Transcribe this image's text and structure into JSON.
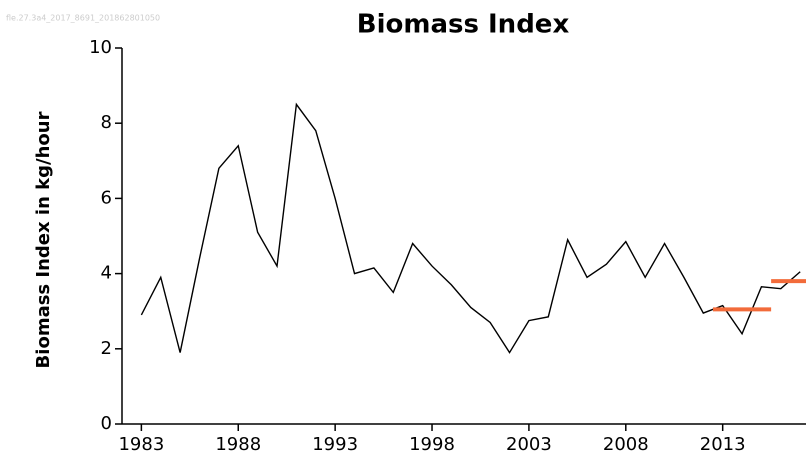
{
  "chart_data": {
    "type": "line",
    "title": "Biomass Index",
    "watermark": "fle.27.3a4_2017_8691_201862801050",
    "ylabel": "Biomass Index in kg/hour",
    "x": [
      1983,
      1984,
      1985,
      1986,
      1987,
      1988,
      1989,
      1990,
      1991,
      1992,
      1993,
      1994,
      1995,
      1996,
      1997,
      1998,
      1999,
      2000,
      2001,
      2002,
      2003,
      2004,
      2005,
      2006,
      2007,
      2008,
      2009,
      2010,
      2011,
      2012,
      2013,
      2014,
      2015,
      2016,
      2017
    ],
    "series": [
      {
        "color": "#000000",
        "values": [
          2.9,
          3.9,
          1.9,
          4.4,
          6.8,
          7.4,
          5.1,
          4.2,
          8.5,
          7.8,
          6.0,
          4.0,
          4.15,
          3.5,
          4.8,
          4.2,
          3.7,
          3.1,
          2.7,
          1.9,
          2.75,
          2.85,
          4.9,
          3.9,
          4.25,
          4.85,
          3.9,
          4.8,
          3.9,
          2.95,
          3.15,
          2.4,
          3.65,
          3.6,
          4.05
        ]
      }
    ],
    "reference_lines": [
      {
        "x": [
          2012.5,
          2015.5
        ],
        "value": 3.05,
        "color": "#f26b3a"
      },
      {
        "x": [
          2015.5,
          2017.3
        ],
        "value": 3.8,
        "color": "#f26b3a"
      }
    ],
    "xlim": [
      1982,
      2017.3
    ],
    "ylim": [
      0,
      10
    ],
    "xticks": [
      1983,
      1988,
      1993,
      1998,
      2003,
      2008,
      2013
    ],
    "yticks": [
      0,
      2,
      4,
      6,
      8,
      10
    ]
  }
}
